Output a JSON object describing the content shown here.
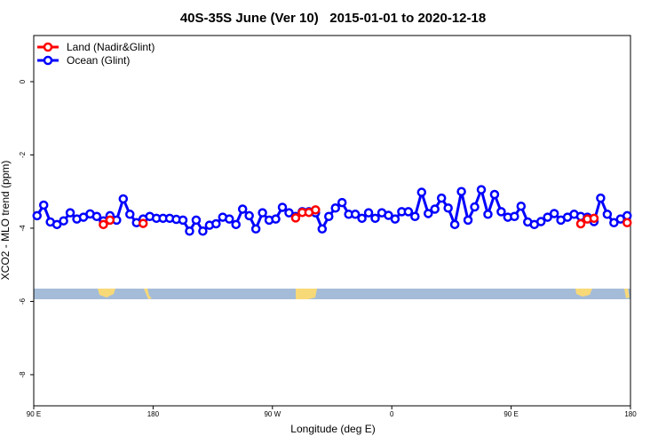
{
  "chart_data": {
    "type": "line",
    "title": "40S-35S June (Ver 10)   2015-01-01 to 2020-12-18",
    "x_label": "Longitude (deg E)",
    "y_label": "XCO2 - MLO trend (ppm)",
    "xlim": [
      90,
      540
    ],
    "ylim": [
      -8.85,
      1.26
    ],
    "xticks": [
      {
        "value": 90,
        "label": "90 E"
      },
      180,
      {
        "value": 270,
        "label": "90 W"
      },
      {
        "value": 360,
        "label": "0"
      },
      {
        "value": 450,
        "label": "90 E"
      },
      {
        "value": 540,
        "label": "180"
      }
    ],
    "yticks": [
      0,
      -2,
      -4,
      -6,
      -8
    ],
    "legend": "top-left",
    "x": [
      92.5,
      97.5,
      102.5,
      107.5,
      112.5,
      117.5,
      122.5,
      127.5,
      132.5,
      137.5,
      142.5,
      147.5,
      152.5,
      157.5,
      162.5,
      167.5,
      172.5,
      177.5,
      182.5,
      187.5,
      192.5,
      197.5,
      202.5,
      207.5,
      212.5,
      217.5,
      222.5,
      227.5,
      232.5,
      237.5,
      242.5,
      247.5,
      252.5,
      257.5,
      262.5,
      267.5,
      272.5,
      277.5,
      282.5,
      287.5,
      292.5,
      297.5,
      302.5,
      307.5,
      312.5,
      317.5,
      322.5,
      327.5,
      332.5,
      337.5,
      342.5,
      347.5,
      352.5,
      357.5,
      362.5,
      367.5,
      372.5,
      377.5,
      382.5,
      387.5,
      392.5,
      397.5,
      402.5,
      407.5,
      412.5,
      417.5,
      422.5,
      427.5,
      432.5,
      437.5,
      442.5,
      447.5,
      452.5,
      457.5,
      462.5,
      467.5,
      472.5,
      477.5,
      482.5,
      487.5,
      492.5,
      497.5,
      502.5,
      507.5,
      512.5,
      517.5,
      522.5,
      527.5,
      532.5,
      537.5
    ],
    "series": [
      {
        "name": "Ocean (Glint)",
        "color": "#0000ff",
        "values": [
          -3.66,
          -3.37,
          -3.83,
          -3.9,
          -3.8,
          -3.58,
          -3.75,
          -3.7,
          -3.61,
          -3.68,
          -3.8,
          -3.66,
          -3.78,
          -3.2,
          -3.62,
          -3.85,
          -3.75,
          -3.68,
          -3.73,
          -3.73,
          -3.73,
          -3.76,
          -3.78,
          -4.08,
          -3.78,
          -4.08,
          -3.92,
          -3.88,
          -3.7,
          -3.75,
          -3.9,
          -3.48,
          -3.66,
          -4.02,
          -3.58,
          -3.78,
          -3.75,
          -3.43,
          -3.58,
          -3.68,
          -3.55,
          -3.55,
          -3.58,
          -4.02,
          -3.68,
          -3.45,
          -3.3,
          -3.62,
          -3.62,
          -3.73,
          -3.58,
          -3.73,
          -3.58,
          -3.65,
          -3.75,
          -3.55,
          -3.55,
          -3.68,
          -3.02,
          -3.6,
          -3.48,
          -3.18,
          -3.45,
          -3.9,
          -3.0,
          -3.78,
          -3.42,
          -2.95,
          -3.62,
          -3.08,
          -3.55,
          -3.7,
          -3.68,
          -3.4,
          -3.83,
          -3.9,
          -3.82,
          -3.7,
          -3.6,
          -3.78,
          -3.7,
          -3.62,
          -3.68,
          -3.7,
          -3.82,
          -3.18,
          -3.62,
          -3.85,
          -3.75,
          -3.66
        ]
      },
      {
        "name": "Land (Nadir&Glint)",
        "color": "#ff0000",
        "values": [
          null,
          null,
          null,
          null,
          null,
          null,
          null,
          null,
          null,
          null,
          -3.9,
          -3.78,
          null,
          null,
          null,
          null,
          -3.87,
          null,
          null,
          null,
          null,
          null,
          null,
          null,
          null,
          null,
          null,
          null,
          null,
          null,
          null,
          null,
          null,
          null,
          null,
          null,
          null,
          null,
          null,
          -3.72,
          -3.57,
          -3.57,
          -3.5,
          null,
          null,
          null,
          null,
          null,
          null,
          null,
          null,
          null,
          null,
          null,
          null,
          null,
          null,
          null,
          null,
          null,
          null,
          null,
          null,
          null,
          null,
          null,
          null,
          null,
          null,
          null,
          null,
          null,
          null,
          null,
          null,
          null,
          null,
          null,
          null,
          null,
          null,
          null,
          -3.88,
          -3.75,
          -3.73,
          null,
          null,
          null,
          null,
          -3.85
        ]
      }
    ]
  }
}
